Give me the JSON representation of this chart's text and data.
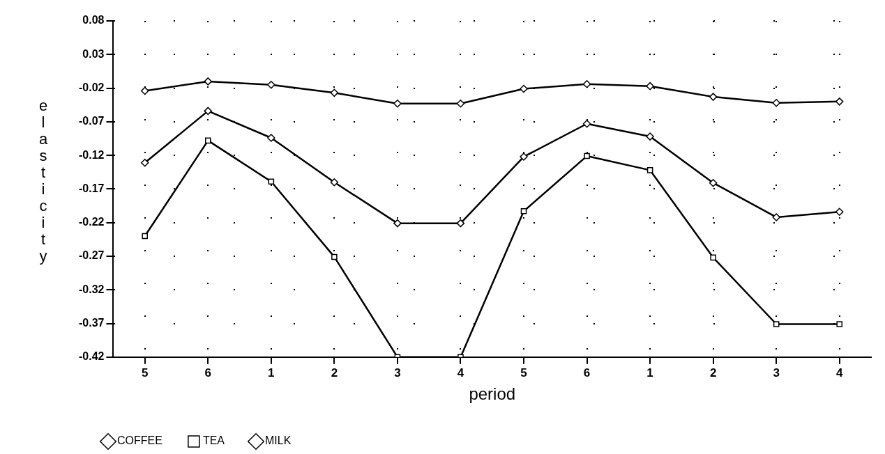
{
  "chart_data": {
    "type": "line",
    "xlabel": "period",
    "ylabel": "elasticity",
    "categories": [
      "5",
      "6",
      "1",
      "2",
      "3",
      "4",
      "5",
      "6",
      "1",
      "2",
      "3",
      "4"
    ],
    "ylim": [
      -0.42,
      0.08
    ],
    "yticks": [
      0.08,
      0.03,
      -0.02,
      -0.07,
      -0.12,
      -0.17,
      -0.22,
      -0.27,
      -0.32,
      -0.37,
      -0.42
    ],
    "grid": true,
    "legend": "bottom left",
    "line_style": "solid",
    "series": [
      {
        "name": "COFFEE",
        "color": "#000000",
        "marker": "diamond",
        "values": [
          -0.131,
          -0.054,
          -0.094,
          -0.16,
          -0.221,
          -0.221,
          -0.122,
          -0.073,
          -0.092,
          -0.161,
          -0.212,
          -0.204
        ]
      },
      {
        "name": "TEA",
        "color": "#000000",
        "marker": "square",
        "values": [
          -0.24,
          -0.098,
          -0.159,
          -0.271,
          -0.42,
          -0.42,
          -0.203,
          -0.121,
          -0.142,
          -0.272,
          -0.371,
          -0.371
        ]
      },
      {
        "name": "MILK",
        "color": "#000000",
        "marker": "diamond",
        "values": [
          -0.024,
          -0.01,
          -0.015,
          -0.027,
          -0.043,
          -0.043,
          -0.021,
          -0.014,
          -0.017,
          -0.033,
          -0.042,
          -0.04
        ]
      }
    ]
  }
}
